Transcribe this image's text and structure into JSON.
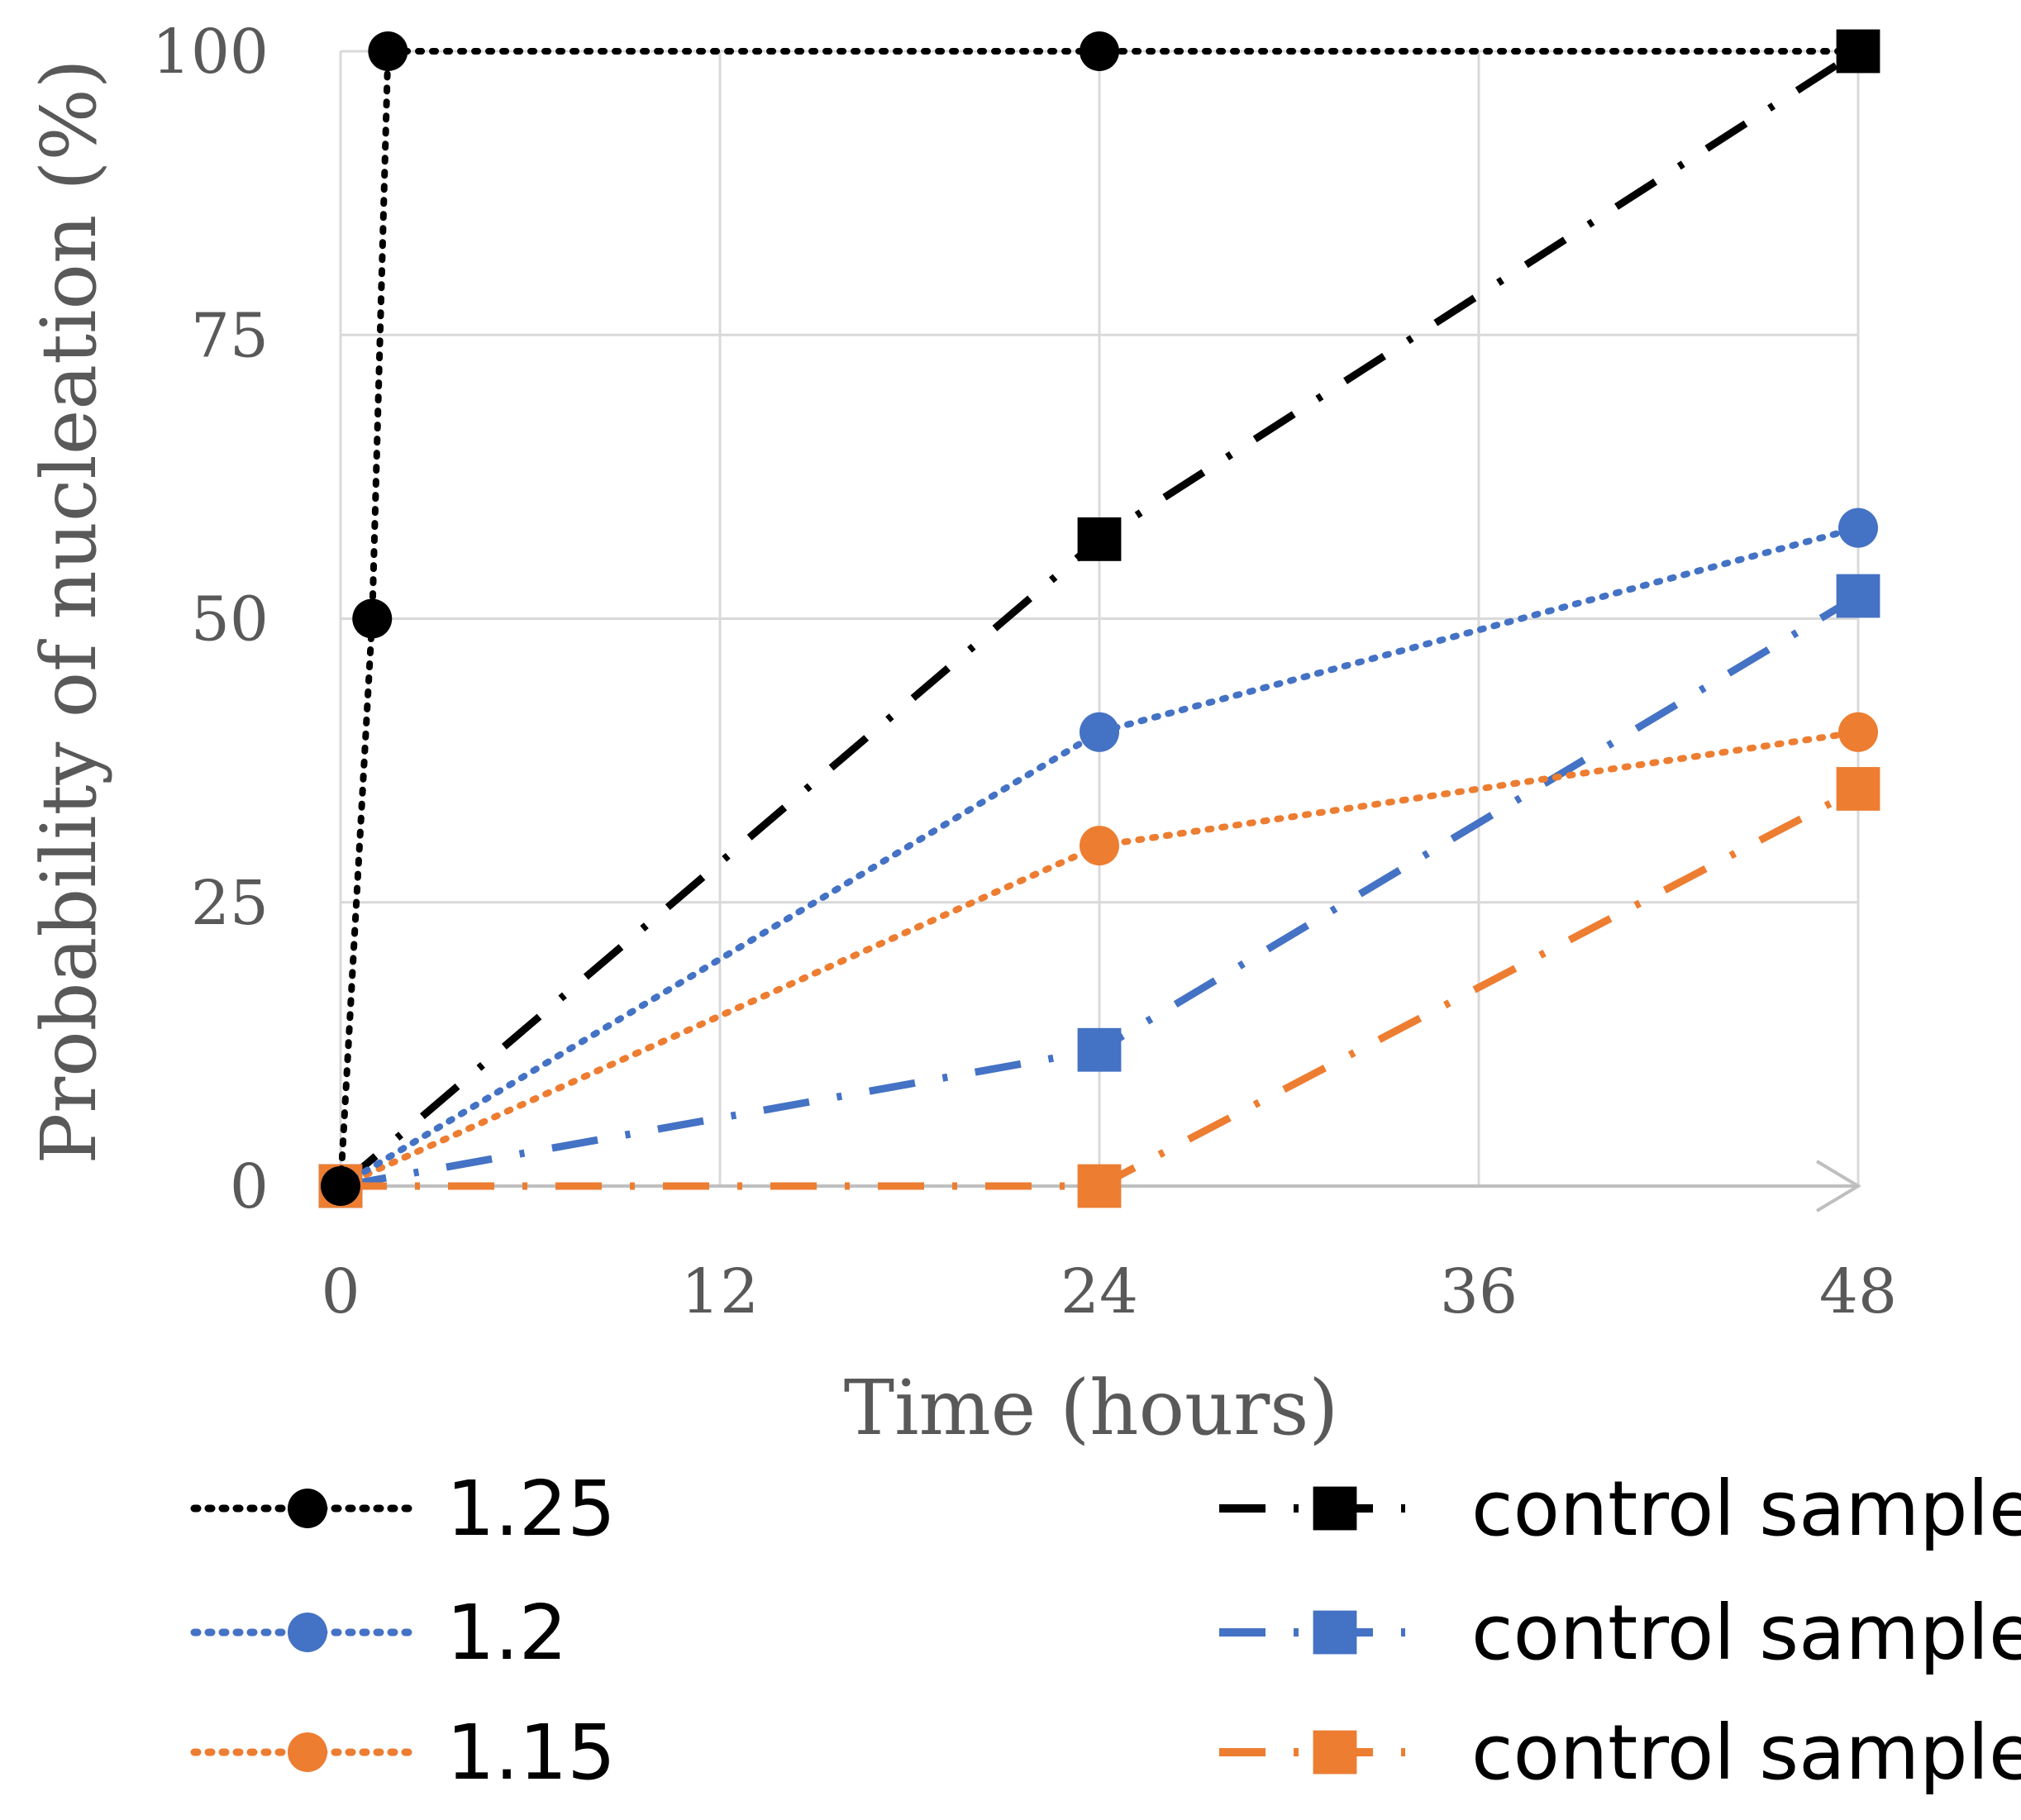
{
  "chart_data": {
    "type": "line",
    "title": "",
    "xlabel": "Time (hours)",
    "ylabel": "Probability of nucleation (%)",
    "xlim": [
      0,
      48
    ],
    "ylim": [
      0,
      100
    ],
    "xticks": [
      "0",
      "12",
      "24",
      "36",
      "48"
    ],
    "yticks": [
      "0",
      "25",
      "50",
      "75",
      "100"
    ],
    "grid": true,
    "legend_position": "bottom",
    "series": [
      {
        "name": "1.25",
        "color": "#000000",
        "line": "dotted",
        "marker": "circle",
        "x": [
          0,
          1,
          1.5,
          24,
          48
        ],
        "y": [
          0,
          50,
          100,
          100,
          100
        ]
      },
      {
        "name": "1.2",
        "color": "#4472C4",
        "line": "dotted",
        "marker": "circle",
        "x": [
          0,
          24,
          48
        ],
        "y": [
          0,
          40,
          58
        ]
      },
      {
        "name": "1.15",
        "color": "#ED7D31",
        "line": "dotted",
        "marker": "circle",
        "x": [
          0,
          24,
          48
        ],
        "y": [
          0,
          30,
          40
        ]
      },
      {
        "name": "control sample",
        "color": "#000000",
        "line": "dashdot",
        "marker": "square",
        "x": [
          0,
          24,
          48
        ],
        "y": [
          0,
          57,
          100
        ]
      },
      {
        "name": "control sample",
        "color": "#4472C4",
        "line": "dashdot",
        "marker": "square",
        "x": [
          0,
          24,
          48
        ],
        "y": [
          0,
          12,
          52
        ]
      },
      {
        "name": "control sample",
        "color": "#ED7D31",
        "line": "dashdot",
        "marker": "square",
        "x": [
          0,
          24,
          48
        ],
        "y": [
          0,
          0,
          35
        ]
      }
    ]
  }
}
